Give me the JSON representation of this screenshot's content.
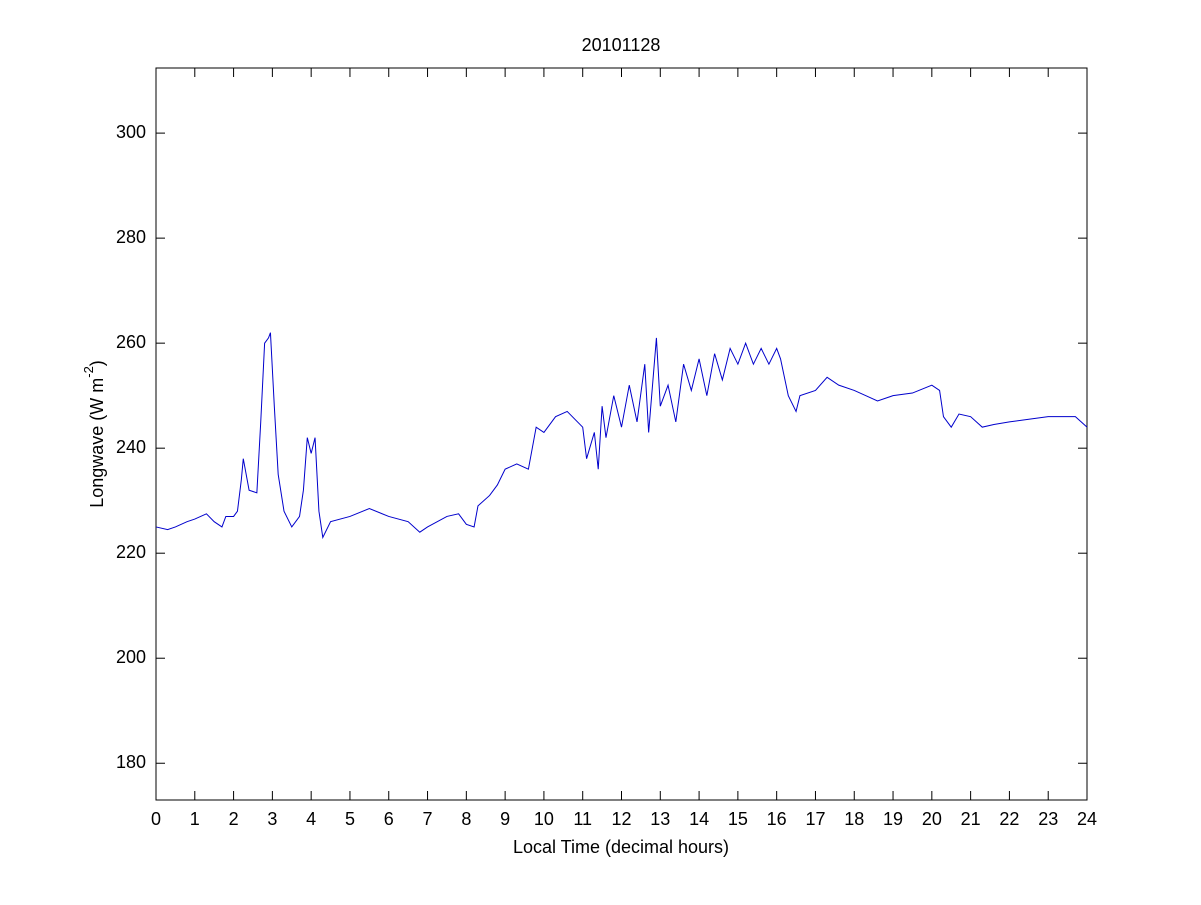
{
  "chart_data": {
    "type": "line",
    "title": "20101128",
    "xlabel": "Local Time (decimal hours)",
    "ylabel": [
      "Longwave (W m",
      "-2",
      ")"
    ],
    "xlim": [
      0,
      24
    ],
    "ylim": [
      173,
      312.4
    ],
    "xticks": [
      0,
      1,
      2,
      3,
      4,
      5,
      6,
      7,
      8,
      9,
      10,
      11,
      12,
      13,
      14,
      15,
      16,
      17,
      18,
      19,
      20,
      21,
      22,
      23,
      24
    ],
    "yticks": [
      180,
      200,
      220,
      240,
      260,
      280,
      300
    ],
    "series": [
      {
        "name": "Longwave",
        "color": "#0000cc",
        "x": [
          0,
          0.3,
          0.5,
          0.8,
          1.0,
          1.3,
          1.5,
          1.7,
          1.8,
          2.0,
          2.1,
          2.2,
          2.25,
          2.4,
          2.6,
          2.7,
          2.8,
          2.9,
          2.95,
          3.05,
          3.15,
          3.3,
          3.5,
          3.7,
          3.8,
          3.9,
          4.0,
          4.1,
          4.2,
          4.3,
          4.5,
          5.0,
          5.5,
          6.0,
          6.5,
          6.8,
          7.0,
          7.5,
          7.8,
          8.0,
          8.2,
          8.3,
          8.6,
          8.8,
          9.0,
          9.3,
          9.6,
          9.7,
          9.8,
          10.0,
          10.3,
          10.6,
          11.0,
          11.1,
          11.3,
          11.4,
          11.5,
          11.6,
          11.8,
          12.0,
          12.2,
          12.4,
          12.6,
          12.7,
          12.9,
          13.0,
          13.2,
          13.4,
          13.6,
          13.8,
          14.0,
          14.2,
          14.4,
          14.6,
          14.8,
          15.0,
          15.2,
          15.4,
          15.6,
          15.8,
          16.0,
          16.1,
          16.3,
          16.5,
          16.6,
          17.0,
          17.3,
          17.6,
          18.0,
          18.3,
          18.6,
          19.0,
          19.5,
          20.0,
          20.2,
          20.3,
          20.5,
          20.7,
          21.0,
          21.3,
          21.6,
          22.0,
          22.5,
          23.0,
          23.5,
          23.7,
          24.0
        ],
        "values": [
          225,
          224.5,
          225,
          226,
          226.5,
          227.5,
          226,
          225,
          227,
          227,
          228,
          234,
          238,
          232,
          231.5,
          245,
          260,
          261,
          262,
          248,
          235,
          228,
          225,
          227,
          232,
          242,
          239,
          242,
          228,
          223,
          226,
          227,
          228.5,
          227,
          226,
          224,
          225,
          227,
          227.5,
          225.5,
          225,
          229,
          231,
          233,
          236,
          237,
          236,
          240,
          244,
          243,
          246,
          247,
          244,
          238,
          243,
          236,
          248,
          242,
          250,
          244,
          252,
          245,
          256,
          243,
          261,
          248,
          252,
          245,
          256,
          251,
          257,
          250,
          258,
          253,
          259,
          256,
          260,
          256,
          259,
          256,
          259,
          257,
          250,
          247,
          250,
          251,
          253.5,
          252,
          251,
          250,
          249,
          250,
          250.5,
          252,
          251,
          246,
          244,
          246.5,
          246,
          244,
          244.5,
          245,
          245.5,
          246,
          246,
          246,
          244
        ]
      }
    ]
  }
}
